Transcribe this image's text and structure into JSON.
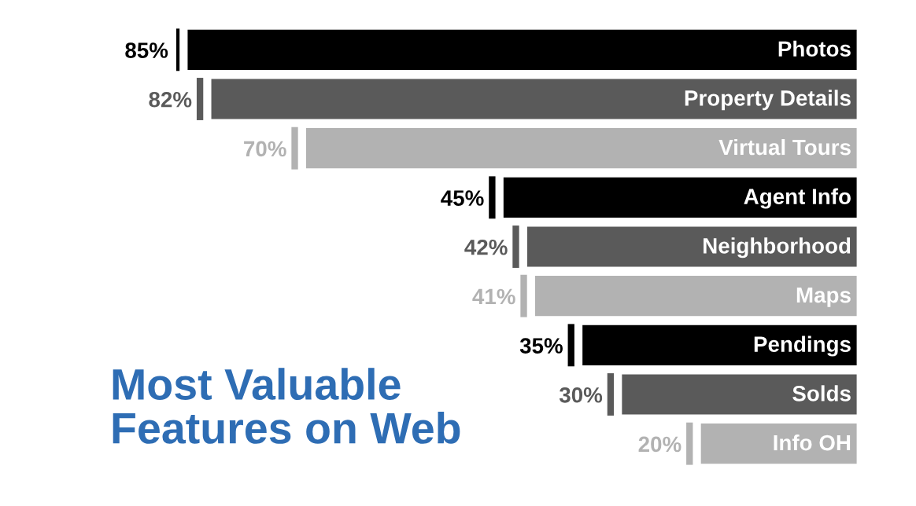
{
  "chart_data": {
    "type": "bar",
    "orientation": "horizontal",
    "title": "Most Valuable Features on Web",
    "categories": [
      "Photos",
      "Property Details",
      "Virtual Tours",
      "Agent Info",
      "Neighborhood",
      "Maps",
      "Pendings",
      "Solds",
      "Info OH"
    ],
    "values": [
      85,
      82,
      70,
      45,
      42,
      41,
      35,
      30,
      20
    ],
    "value_labels": [
      "85%",
      "82%",
      "70%",
      "45%",
      "42%",
      "41%",
      "35%",
      "30%",
      "20%"
    ],
    "colors": [
      "#000000",
      "#5a5a5a",
      "#b2b2b2",
      "#000000",
      "#5a5a5a",
      "#b2b2b2",
      "#000000",
      "#5a5a5a",
      "#b2b2b2"
    ],
    "tick_labels": false,
    "legend": false
  }
}
